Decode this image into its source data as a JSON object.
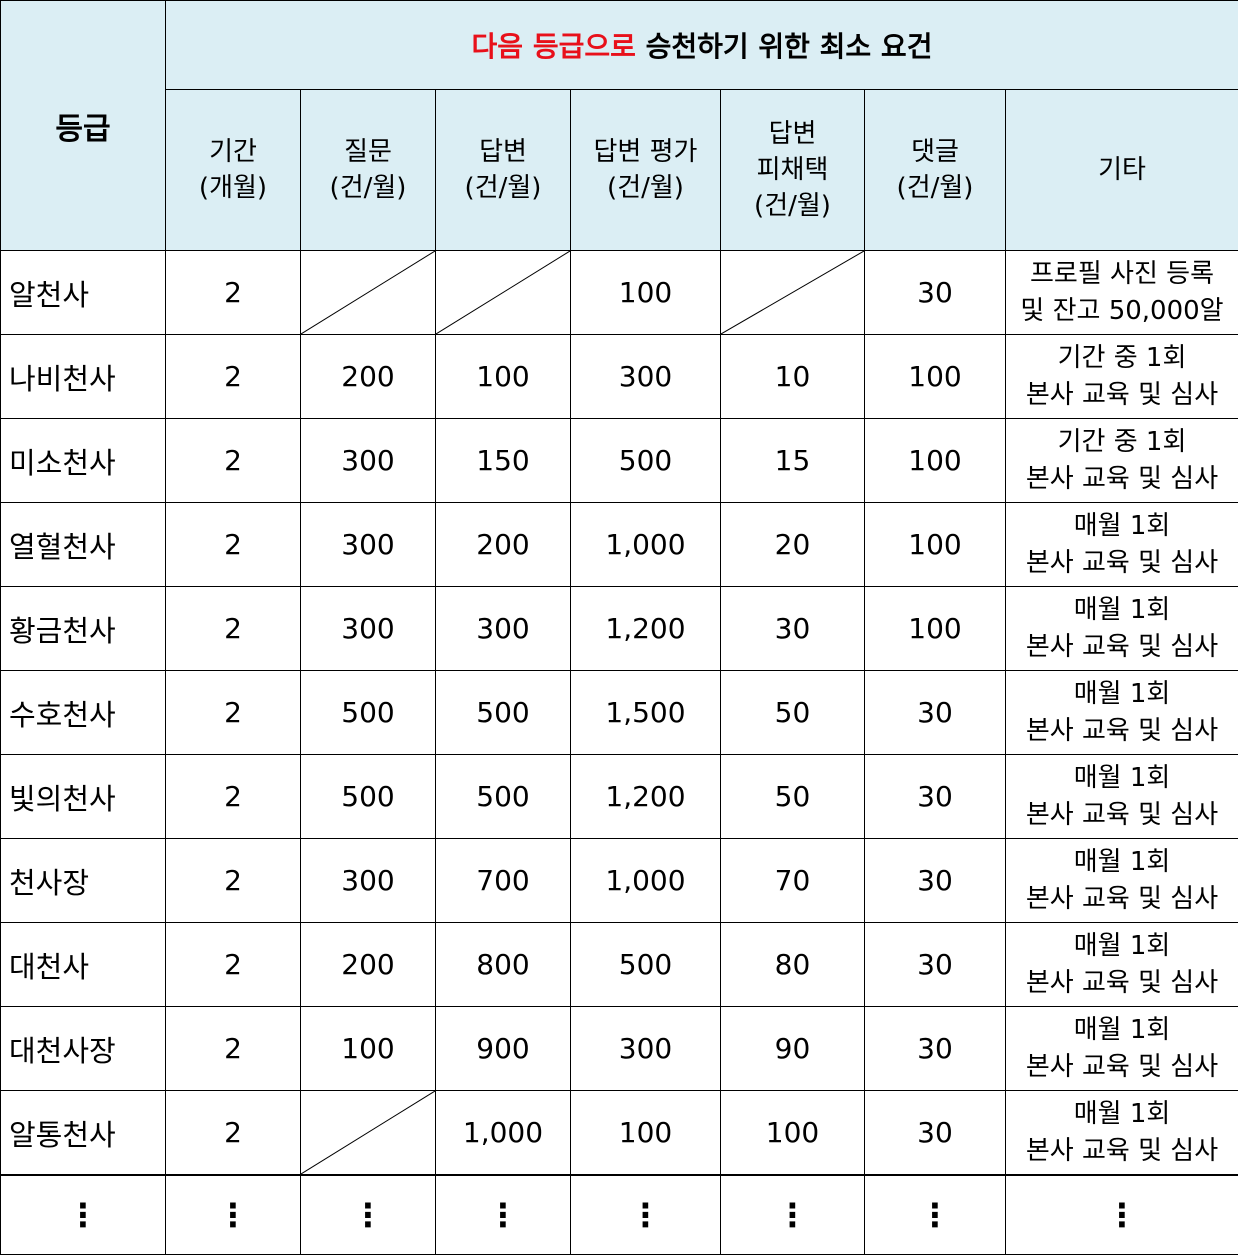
{
  "header": {
    "grade": "등급",
    "title_red": "다음 등급으로",
    "title_rest": " 승천하기 위한 최소 요건",
    "columns": [
      {
        "line1": "기간",
        "line2": "(개월)"
      },
      {
        "line1": "질문",
        "line2": "(건/월)"
      },
      {
        "line1": "답변",
        "line2": "(건/월)"
      },
      {
        "line1": "답변 평가",
        "line2": "(건/월)"
      },
      {
        "line1": "답변",
        "line2": "피채택",
        "line3": "(건/월)"
      },
      {
        "line1": "댓글",
        "line2": "(건/월)"
      },
      {
        "line1": "기타"
      }
    ]
  },
  "rows": [
    {
      "name": "알천사",
      "period": "2",
      "question": "",
      "answer": "",
      "rating": "100",
      "adopted": "",
      "comment": "30",
      "note1": "프로필 사진 등록",
      "note2": "및 잔고 50,000알"
    },
    {
      "name": "나비천사",
      "period": "2",
      "question": "200",
      "answer": "100",
      "rating": "300",
      "adopted": "10",
      "comment": "100",
      "note1": "기간 중 1회",
      "note2": "본사 교육 및 심사"
    },
    {
      "name": "미소천사",
      "period": "2",
      "question": "300",
      "answer": "150",
      "rating": "500",
      "adopted": "15",
      "comment": "100",
      "note1": "기간 중 1회",
      "note2": "본사 교육 및 심사"
    },
    {
      "name": "열혈천사",
      "period": "2",
      "question": "300",
      "answer": "200",
      "rating": "1,000",
      "adopted": "20",
      "comment": "100",
      "note1": "매월 1회",
      "note2": "본사 교육 및 심사"
    },
    {
      "name": "황금천사",
      "period": "2",
      "question": "300",
      "answer": "300",
      "rating": "1,200",
      "adopted": "30",
      "comment": "100",
      "note1": "매월 1회",
      "note2": "본사 교육 및 심사"
    },
    {
      "name": "수호천사",
      "period": "2",
      "question": "500",
      "answer": "500",
      "rating": "1,500",
      "adopted": "50",
      "comment": "30",
      "note1": "매월 1회",
      "note2": "본사 교육 및 심사"
    },
    {
      "name": "빛의천사",
      "period": "2",
      "question": "500",
      "answer": "500",
      "rating": "1,200",
      "adopted": "50",
      "comment": "30",
      "note1": "매월 1회",
      "note2": "본사 교육 및 심사"
    },
    {
      "name": "천사장",
      "period": "2",
      "question": "300",
      "answer": "700",
      "rating": "1,000",
      "adopted": "70",
      "comment": "30",
      "note1": "매월 1회",
      "note2": "본사 교육 및 심사"
    },
    {
      "name": "대천사",
      "period": "2",
      "question": "200",
      "answer": "800",
      "rating": "500",
      "adopted": "80",
      "comment": "30",
      "note1": "매월 1회",
      "note2": "본사 교육 및 심사"
    },
    {
      "name": "대천사장",
      "period": "2",
      "question": "100",
      "answer": "900",
      "rating": "300",
      "adopted": "90",
      "comment": "30",
      "note1": "매월 1회",
      "note2": "본사 교육 및 심사"
    },
    {
      "name": "알통천사",
      "period": "2",
      "question": "",
      "answer": "1,000",
      "rating": "100",
      "adopted": "100",
      "comment": "30",
      "note1": "매월 1회",
      "note2": "본사 교육 및 심사"
    }
  ],
  "ellipsis": "⋮"
}
